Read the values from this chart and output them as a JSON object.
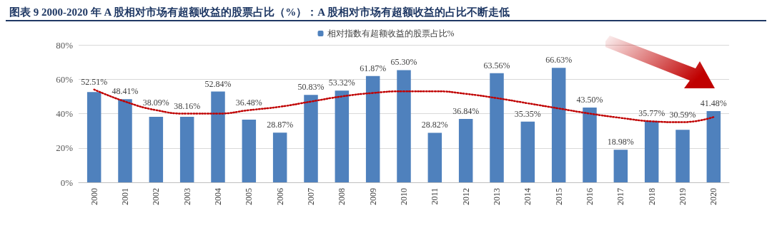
{
  "chart_data": {
    "type": "bar",
    "title": "图表 9 2000-2020 年 A 股相对市场有超额收益的股票占比（%）：A 股相对市场有超额收益的占比不断走低",
    "categories": [
      "2000",
      "2001",
      "2002",
      "2003",
      "2004",
      "2005",
      "2006",
      "2007",
      "2008",
      "2009",
      "2010",
      "2011",
      "2012",
      "2013",
      "2014",
      "2015",
      "2016",
      "2017",
      "2018",
      "2019",
      "2020"
    ],
    "series": [
      {
        "name": "相对指数有超额收益的股票占比%",
        "color": "#4f81bd",
        "values": [
          52.51,
          48.41,
          38.09,
          38.16,
          52.84,
          36.48,
          28.87,
          50.83,
          53.32,
          61.87,
          65.3,
          28.82,
          36.84,
          63.56,
          35.35,
          66.63,
          43.5,
          18.98,
          35.77,
          30.59,
          41.48
        ],
        "value_labels": [
          "52.51%",
          "48.41%",
          "38.09%",
          "38.16%",
          "52.84%",
          "36.48%",
          "28.87%",
          "50.83%",
          "53.32%",
          "61.87%",
          "65.30%",
          "28.82%",
          "36.84%",
          "63.56%",
          "35.35%",
          "66.63%",
          "43.50%",
          "18.98%",
          "35.77%",
          "30.59%",
          "41.48%"
        ]
      },
      {
        "type": "line",
        "color": "#c00000",
        "line_style": "dotted",
        "marker": "none",
        "values": [
          54,
          47,
          42,
          40,
          40,
          42,
          44,
          47,
          50,
          52,
          53,
          53,
          51.5,
          49,
          46,
          43,
          40,
          37.5,
          35.5,
          35,
          38
        ]
      }
    ],
    "ylim": [
      0,
      80
    ],
    "yticks": [
      {
        "value": 0,
        "label": "0%"
      },
      {
        "value": 20,
        "label": "20%"
      },
      {
        "value": 40,
        "label": "40%"
      },
      {
        "value": 60,
        "label": "60%"
      },
      {
        "value": 80,
        "label": "80%"
      }
    ],
    "grid": "y",
    "legend": "top"
  }
}
